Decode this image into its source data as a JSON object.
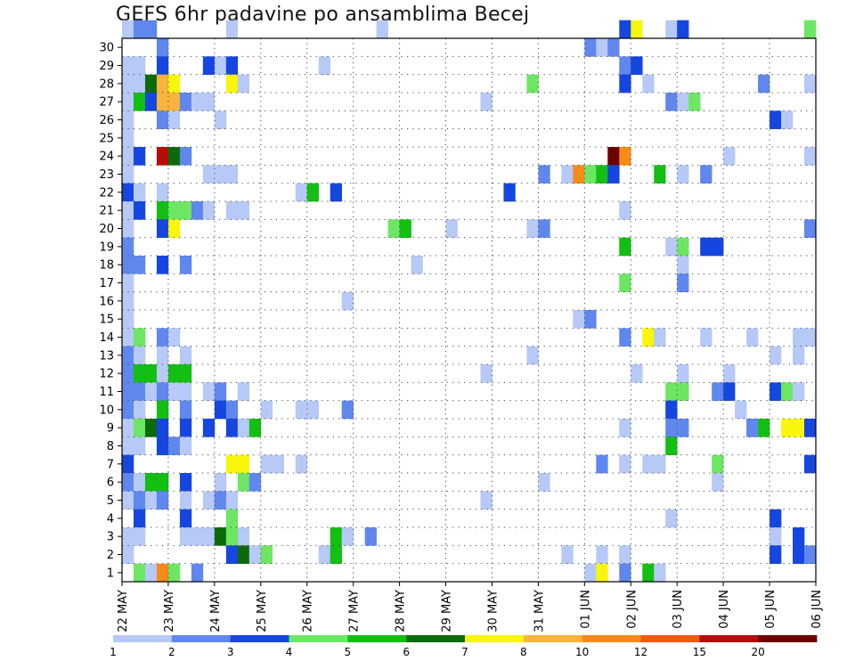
{
  "chart_data": {
    "type": "heatmap",
    "title": "GEFS 6hr padavine po ansamblima Becej",
    "xlabel": "",
    "ylabel": "",
    "x_ticks": [
      "22 MAY",
      "23 MAY",
      "24 MAY",
      "25 MAY",
      "26 MAY",
      "27 MAY",
      "28 MAY",
      "29 MAY",
      "30 MAY",
      "31 MAY",
      "01 JUN",
      "02 JUN",
      "03 JUN",
      "04 JUN",
      "05 JUN",
      "06 JUN"
    ],
    "x_tick_pos": [
      0,
      4,
      8,
      12,
      16,
      20,
      24,
      28,
      32,
      36,
      40,
      44,
      48,
      52,
      56,
      60
    ],
    "n_steps": 60,
    "y_ticks": [
      1,
      2,
      3,
      4,
      5,
      6,
      7,
      8,
      9,
      10,
      11,
      12,
      13,
      14,
      15,
      16,
      17,
      18,
      19,
      20,
      21,
      22,
      23,
      24,
      25,
      26,
      27,
      28,
      29,
      30
    ],
    "y_range": [
      0,
      30
    ],
    "grid": true,
    "colorbar": {
      "labels": [
        "1",
        "2",
        "3",
        "4",
        "5",
        "6",
        "7",
        "8",
        "10",
        "12",
        "15",
        "20"
      ],
      "colors": [
        "#b7c9f6",
        "#5f87ee",
        "#1546e0",
        "#6ce663",
        "#12bf12",
        "#0b6b0b",
        "#f8f60c",
        "#f8b43c",
        "#f88a18",
        "#ec5b10",
        "#b80c0c",
        "#6b0000"
      ]
    },
    "cells": [
      [
        30,
        0,
        1
      ],
      [
        30,
        1,
        2
      ],
      [
        30,
        2,
        2
      ],
      [
        30,
        9,
        1
      ],
      [
        30,
        22,
        1
      ],
      [
        30,
        43,
        3
      ],
      [
        30,
        44,
        7
      ],
      [
        30,
        47,
        1
      ],
      [
        30,
        48,
        3
      ],
      [
        30,
        59,
        4
      ],
      [
        29,
        3,
        2
      ],
      [
        29,
        40,
        2
      ],
      [
        29,
        41,
        1
      ],
      [
        29,
        42,
        2
      ],
      [
        28,
        0,
        1
      ],
      [
        28,
        1,
        1
      ],
      [
        28,
        3,
        3
      ],
      [
        28,
        7,
        3
      ],
      [
        28,
        8,
        1
      ],
      [
        28,
        9,
        3
      ],
      [
        28,
        17,
        1
      ],
      [
        28,
        43,
        2
      ],
      [
        28,
        44,
        3
      ],
      [
        27,
        0,
        1
      ],
      [
        27,
        1,
        1
      ],
      [
        27,
        2,
        6
      ],
      [
        27,
        3,
        8
      ],
      [
        27,
        4,
        7
      ],
      [
        27,
        9,
        7
      ],
      [
        27,
        10,
        1
      ],
      [
        27,
        35,
        4
      ],
      [
        27,
        43,
        3
      ],
      [
        27,
        45,
        1
      ],
      [
        27,
        55,
        2
      ],
      [
        27,
        59,
        1
      ],
      [
        26,
        0,
        1
      ],
      [
        26,
        1,
        5
      ],
      [
        26,
        2,
        3
      ],
      [
        26,
        3,
        8
      ],
      [
        26,
        4,
        8
      ],
      [
        26,
        5,
        2
      ],
      [
        26,
        6,
        1
      ],
      [
        26,
        7,
        1
      ],
      [
        26,
        31,
        1
      ],
      [
        26,
        47,
        2
      ],
      [
        26,
        48,
        1
      ],
      [
        26,
        49,
        4
      ],
      [
        25,
        0,
        1
      ],
      [
        25,
        3,
        2
      ],
      [
        25,
        4,
        1
      ],
      [
        25,
        8,
        1
      ],
      [
        25,
        56,
        3
      ],
      [
        25,
        57,
        1
      ],
      [
        24,
        0,
        1
      ],
      [
        23,
        0,
        1
      ],
      [
        23,
        1,
        3
      ],
      [
        23,
        3,
        11
      ],
      [
        23,
        4,
        6
      ],
      [
        23,
        5,
        2
      ],
      [
        23,
        42,
        12
      ],
      [
        23,
        43,
        9
      ],
      [
        23,
        52,
        1
      ],
      [
        23,
        59,
        1
      ],
      [
        22,
        0,
        1
      ],
      [
        22,
        7,
        1
      ],
      [
        22,
        8,
        1
      ],
      [
        22,
        9,
        1
      ],
      [
        22,
        36,
        2
      ],
      [
        22,
        38,
        1
      ],
      [
        22,
        39,
        9
      ],
      [
        22,
        40,
        4
      ],
      [
        22,
        41,
        5
      ],
      [
        22,
        42,
        3
      ],
      [
        22,
        46,
        5
      ],
      [
        22,
        48,
        1
      ],
      [
        22,
        50,
        2
      ],
      [
        21,
        0,
        3
      ],
      [
        21,
        1,
        1
      ],
      [
        21,
        3,
        1
      ],
      [
        21,
        15,
        1
      ],
      [
        21,
        16,
        5
      ],
      [
        21,
        18,
        3
      ],
      [
        21,
        33,
        3
      ],
      [
        20,
        0,
        1
      ],
      [
        20,
        1,
        3
      ],
      [
        20,
        3,
        5
      ],
      [
        20,
        4,
        4
      ],
      [
        20,
        5,
        4
      ],
      [
        20,
        6,
        2
      ],
      [
        20,
        7,
        1
      ],
      [
        20,
        9,
        1
      ],
      [
        20,
        10,
        1
      ],
      [
        20,
        43,
        1
      ],
      [
        19,
        0,
        1
      ],
      [
        19,
        3,
        3
      ],
      [
        19,
        4,
        7
      ],
      [
        19,
        23,
        4
      ],
      [
        19,
        24,
        5
      ],
      [
        19,
        28,
        1
      ],
      [
        19,
        35,
        1
      ],
      [
        19,
        36,
        2
      ],
      [
        19,
        59,
        2
      ],
      [
        18,
        0,
        2
      ],
      [
        18,
        43,
        5
      ],
      [
        18,
        47,
        1
      ],
      [
        18,
        48,
        4
      ],
      [
        18,
        50,
        3
      ],
      [
        18,
        51,
        3
      ],
      [
        17,
        0,
        2
      ],
      [
        17,
        1,
        2
      ],
      [
        17,
        3,
        3
      ],
      [
        17,
        5,
        2
      ],
      [
        17,
        25,
        1
      ],
      [
        17,
        48,
        1
      ],
      [
        16,
        0,
        1
      ],
      [
        16,
        43,
        4
      ],
      [
        16,
        48,
        2
      ],
      [
        15,
        0,
        1
      ],
      [
        15,
        19,
        1
      ],
      [
        14,
        0,
        1
      ],
      [
        14,
        39,
        1
      ],
      [
        14,
        40,
        2
      ],
      [
        13,
        0,
        1
      ],
      [
        13,
        1,
        4
      ],
      [
        13,
        3,
        2
      ],
      [
        13,
        4,
        1
      ],
      [
        13,
        43,
        2
      ],
      [
        13,
        45,
        7
      ],
      [
        13,
        46,
        1
      ],
      [
        13,
        50,
        1
      ],
      [
        13,
        54,
        1
      ],
      [
        13,
        58,
        1
      ],
      [
        13,
        59,
        1
      ],
      [
        12,
        0,
        2
      ],
      [
        12,
        1,
        1
      ],
      [
        12,
        3,
        1
      ],
      [
        12,
        5,
        1
      ],
      [
        12,
        35,
        1
      ],
      [
        12,
        56,
        1
      ],
      [
        12,
        58,
        1
      ],
      [
        11,
        0,
        2
      ],
      [
        11,
        1,
        5
      ],
      [
        11,
        2,
        5
      ],
      [
        11,
        3,
        1
      ],
      [
        11,
        4,
        5
      ],
      [
        11,
        5,
        5
      ],
      [
        11,
        31,
        1
      ],
      [
        11,
        44,
        1
      ],
      [
        11,
        48,
        1
      ],
      [
        11,
        52,
        1
      ],
      [
        10,
        0,
        2
      ],
      [
        10,
        1,
        2
      ],
      [
        10,
        2,
        1
      ],
      [
        10,
        3,
        2
      ],
      [
        10,
        4,
        1
      ],
      [
        10,
        5,
        1
      ],
      [
        10,
        7,
        1
      ],
      [
        10,
        8,
        2
      ],
      [
        10,
        10,
        1
      ],
      [
        10,
        47,
        4
      ],
      [
        10,
        48,
        4
      ],
      [
        10,
        51,
        2
      ],
      [
        10,
        52,
        3
      ],
      [
        10,
        56,
        3
      ],
      [
        10,
        57,
        4
      ],
      [
        10,
        58,
        1
      ],
      [
        9,
        0,
        2
      ],
      [
        9,
        1,
        1
      ],
      [
        9,
        3,
        5
      ],
      [
        9,
        5,
        2
      ],
      [
        9,
        8,
        3
      ],
      [
        9,
        9,
        2
      ],
      [
        9,
        12,
        1
      ],
      [
        9,
        15,
        1
      ],
      [
        9,
        16,
        1
      ],
      [
        9,
        19,
        2
      ],
      [
        9,
        47,
        3
      ],
      [
        9,
        53,
        1
      ],
      [
        8,
        0,
        1
      ],
      [
        8,
        1,
        4
      ],
      [
        8,
        2,
        6
      ],
      [
        8,
        3,
        3
      ],
      [
        8,
        5,
        3
      ],
      [
        8,
        7,
        3
      ],
      [
        8,
        9,
        3
      ],
      [
        8,
        10,
        1
      ],
      [
        8,
        11,
        5
      ],
      [
        8,
        43,
        1
      ],
      [
        8,
        47,
        2
      ],
      [
        8,
        48,
        2
      ],
      [
        8,
        54,
        2
      ],
      [
        8,
        55,
        5
      ],
      [
        8,
        57,
        7
      ],
      [
        8,
        58,
        7
      ],
      [
        8,
        59,
        3
      ],
      [
        7,
        0,
        1
      ],
      [
        7,
        1,
        1
      ],
      [
        7,
        3,
        3
      ],
      [
        7,
        4,
        2
      ],
      [
        7,
        5,
        1
      ],
      [
        7,
        47,
        5
      ],
      [
        6,
        0,
        3
      ],
      [
        6,
        9,
        7
      ],
      [
        6,
        10,
        7
      ],
      [
        6,
        12,
        1
      ],
      [
        6,
        13,
        1
      ],
      [
        6,
        15,
        1
      ],
      [
        6,
        41,
        2
      ],
      [
        6,
        43,
        1
      ],
      [
        6,
        45,
        1
      ],
      [
        6,
        46,
        1
      ],
      [
        6,
        51,
        4
      ],
      [
        6,
        59,
        3
      ],
      [
        5,
        0,
        2
      ],
      [
        5,
        1,
        1
      ],
      [
        5,
        2,
        5
      ],
      [
        5,
        3,
        5
      ],
      [
        5,
        5,
        3
      ],
      [
        5,
        8,
        1
      ],
      [
        5,
        10,
        4
      ],
      [
        5,
        11,
        2
      ],
      [
        5,
        36,
        1
      ],
      [
        5,
        51,
        1
      ],
      [
        4,
        0,
        1
      ],
      [
        4,
        1,
        2
      ],
      [
        4,
        2,
        1
      ],
      [
        4,
        3,
        2
      ],
      [
        4,
        5,
        1
      ],
      [
        4,
        7,
        1
      ],
      [
        4,
        8,
        2
      ],
      [
        4,
        9,
        1
      ],
      [
        4,
        31,
        1
      ],
      [
        3,
        1,
        3
      ],
      [
        3,
        5,
        3
      ],
      [
        3,
        9,
        4
      ],
      [
        3,
        47,
        1
      ],
      [
        3,
        56,
        3
      ],
      [
        2,
        0,
        1
      ],
      [
        2,
        1,
        1
      ],
      [
        2,
        5,
        1
      ],
      [
        2,
        6,
        1
      ],
      [
        2,
        7,
        1
      ],
      [
        2,
        8,
        6
      ],
      [
        2,
        9,
        4
      ],
      [
        2,
        10,
        1
      ],
      [
        2,
        18,
        5
      ],
      [
        2,
        19,
        1
      ],
      [
        2,
        21,
        2
      ],
      [
        2,
        56,
        1
      ],
      [
        2,
        58,
        3
      ],
      [
        1,
        0,
        1
      ],
      [
        1,
        9,
        3
      ],
      [
        1,
        10,
        6
      ],
      [
        1,
        11,
        1
      ],
      [
        1,
        12,
        4
      ],
      [
        1,
        17,
        1
      ],
      [
        1,
        18,
        5
      ],
      [
        1,
        38,
        1
      ],
      [
        1,
        41,
        1
      ],
      [
        1,
        43,
        1
      ],
      [
        1,
        56,
        3
      ],
      [
        1,
        58,
        3
      ],
      [
        1,
        59,
        2
      ],
      [
        0,
        1,
        4
      ],
      [
        0,
        2,
        1
      ],
      [
        0,
        3,
        9
      ],
      [
        0,
        4,
        4
      ],
      [
        0,
        6,
        2
      ],
      [
        0,
        40,
        1
      ],
      [
        0,
        41,
        7
      ],
      [
        0,
        43,
        2
      ],
      [
        0,
        45,
        5
      ],
      [
        0,
        46,
        1
      ]
    ]
  }
}
